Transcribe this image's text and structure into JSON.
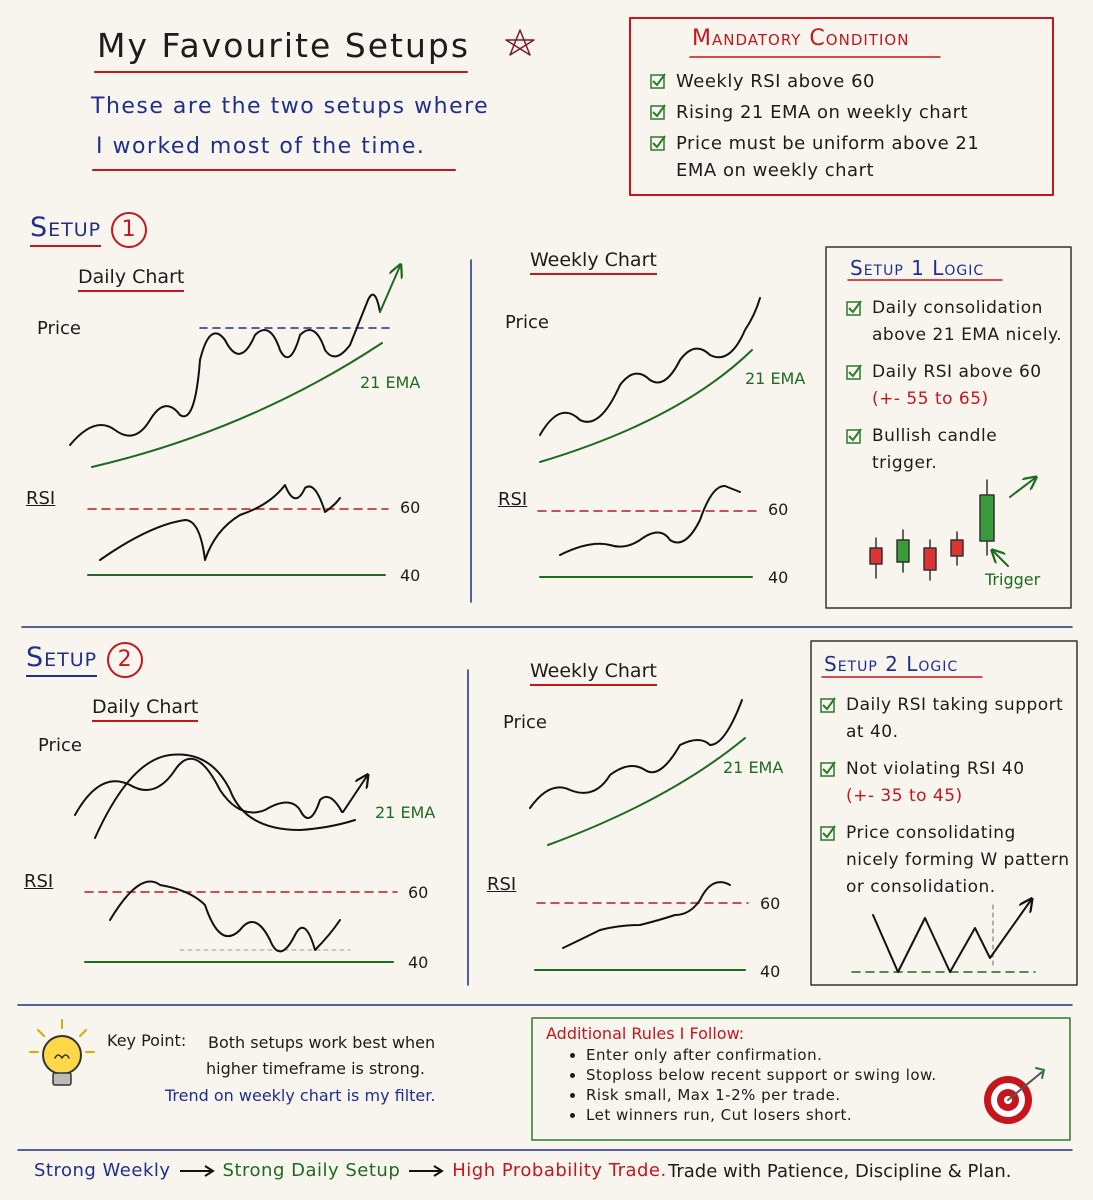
{
  "header": {
    "title": "My Favourite Setups",
    "subtitle": [
      "These are the two setups where",
      "I worked most of the time."
    ]
  },
  "mandatory": {
    "title": "Mandatory Condition",
    "items": [
      "Weekly RSI above 60",
      "Rising 21 EMA on weekly chart",
      "Price must be uniform above 21 EMA on weekly chart"
    ]
  },
  "setups": [
    {
      "label": "Setup",
      "number": "1",
      "daily": {
        "title": "Daily Chart",
        "price": "Price",
        "ema": "21 EMA",
        "rsi": "RSI",
        "upper": "60",
        "lower": "40"
      },
      "weekly": {
        "title": "Weekly Chart",
        "price": "Price",
        "ema": "21 EMA",
        "rsi": "RSI",
        "upper": "60",
        "lower": "40"
      },
      "logic": {
        "title": "Setup 1 Logic",
        "items": [
          {
            "text": "Daily consolidation above 21 EMA nicely."
          },
          {
            "text": "Daily RSI above 60",
            "note": "(+- 55 to 65)"
          },
          {
            "text": "Bullish candle trigger."
          }
        ],
        "trigger": "Trigger"
      }
    },
    {
      "label": "Setup",
      "number": "2",
      "daily": {
        "title": "Daily Chart",
        "price": "Price",
        "ema": "21 EMA",
        "rsi": "RSI",
        "upper": "60",
        "lower": "40"
      },
      "weekly": {
        "title": "Weekly Chart",
        "price": "Price",
        "ema": "21 EMA",
        "rsi": "RSI",
        "upper": "60",
        "lower": "40"
      },
      "logic": {
        "title": "Setup 2 Logic",
        "items": [
          {
            "text": "Daily RSI taking support at 40."
          },
          {
            "text": "Not violating RSI 40",
            "note": "(+- 35 to 45)"
          },
          {
            "text": "Price consolidating nicely forming W pattern or consolidation."
          }
        ]
      }
    }
  ],
  "key_point": {
    "label": "Key Point:",
    "text": [
      "Both setups work best when",
      "higher timeframe is strong."
    ],
    "filter": "Trend on weekly chart is my filter."
  },
  "rules": {
    "title": "Additional Rules I Follow:",
    "items": [
      "Enter only after confirmation.",
      "Stoploss below recent support or swing low.",
      "Risk small, Max 1-2% per trade.",
      "Let winners run, Cut losers short."
    ]
  },
  "footer": {
    "flow": [
      "Strong Weekly",
      "Strong Daily Setup",
      "High Probability Trade."
    ],
    "motto": "Trade with Patience, Discipline & Plan."
  }
}
